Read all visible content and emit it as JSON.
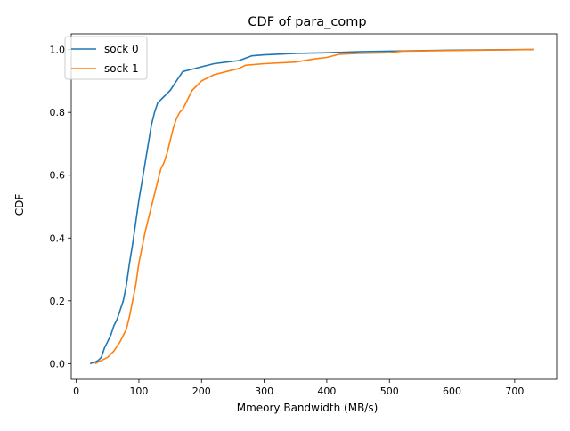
{
  "chart_data": {
    "type": "line",
    "title": "CDF of para_comp",
    "xlabel": "Mmeory Bandwidth (MB/s)",
    "ylabel": "CDF",
    "xlim": [
      -8,
      767
    ],
    "ylim": [
      -0.05,
      1.05
    ],
    "xticks": [
      0,
      100,
      200,
      300,
      400,
      500,
      600,
      700
    ],
    "yticks": [
      0.0,
      0.2,
      0.4,
      0.6,
      0.8,
      1.0
    ],
    "xtick_labels": [
      "0",
      "100",
      "200",
      "300",
      "400",
      "500",
      "600",
      "700"
    ],
    "ytick_labels": [
      "0.0",
      "0.2",
      "0.4",
      "0.6",
      "0.8",
      "1.0"
    ],
    "grid": false,
    "legend_position": "upper-left",
    "series": [
      {
        "name": "sock 0",
        "color": "#1f77b4",
        "points": [
          [
            22,
            0.0
          ],
          [
            30,
            0.005
          ],
          [
            35,
            0.01
          ],
          [
            40,
            0.02
          ],
          [
            45,
            0.05
          ],
          [
            50,
            0.07
          ],
          [
            55,
            0.09
          ],
          [
            60,
            0.12
          ],
          [
            65,
            0.14
          ],
          [
            70,
            0.17
          ],
          [
            75,
            0.2
          ],
          [
            80,
            0.25
          ],
          [
            85,
            0.32
          ],
          [
            90,
            0.38
          ],
          [
            95,
            0.45
          ],
          [
            100,
            0.52
          ],
          [
            105,
            0.58
          ],
          [
            110,
            0.64
          ],
          [
            115,
            0.7
          ],
          [
            120,
            0.76
          ],
          [
            125,
            0.8
          ],
          [
            130,
            0.83
          ],
          [
            140,
            0.85
          ],
          [
            150,
            0.87
          ],
          [
            160,
            0.9
          ],
          [
            170,
            0.93
          ],
          [
            180,
            0.935
          ],
          [
            200,
            0.945
          ],
          [
            220,
            0.955
          ],
          [
            240,
            0.96
          ],
          [
            260,
            0.965
          ],
          [
            280,
            0.98
          ],
          [
            300,
            0.983
          ],
          [
            350,
            0.988
          ],
          [
            400,
            0.99
          ],
          [
            450,
            0.993
          ],
          [
            500,
            0.995
          ],
          [
            600,
            0.998
          ],
          [
            731,
            1.0
          ]
        ]
      },
      {
        "name": "sock 1",
        "color": "#ff7f0e",
        "points": [
          [
            30,
            0.0
          ],
          [
            40,
            0.01
          ],
          [
            50,
            0.02
          ],
          [
            60,
            0.04
          ],
          [
            70,
            0.07
          ],
          [
            80,
            0.11
          ],
          [
            85,
            0.15
          ],
          [
            90,
            0.2
          ],
          [
            95,
            0.25
          ],
          [
            100,
            0.32
          ],
          [
            105,
            0.37
          ],
          [
            110,
            0.42
          ],
          [
            115,
            0.46
          ],
          [
            120,
            0.5
          ],
          [
            125,
            0.54
          ],
          [
            130,
            0.58
          ],
          [
            135,
            0.62
          ],
          [
            140,
            0.64
          ],
          [
            145,
            0.67
          ],
          [
            150,
            0.71
          ],
          [
            155,
            0.75
          ],
          [
            160,
            0.78
          ],
          [
            165,
            0.8
          ],
          [
            170,
            0.81
          ],
          [
            175,
            0.83
          ],
          [
            180,
            0.85
          ],
          [
            185,
            0.87
          ],
          [
            190,
            0.88
          ],
          [
            200,
            0.9
          ],
          [
            220,
            0.92
          ],
          [
            240,
            0.93
          ],
          [
            260,
            0.94
          ],
          [
            270,
            0.95
          ],
          [
            300,
            0.955
          ],
          [
            350,
            0.96
          ],
          [
            380,
            0.97
          ],
          [
            400,
            0.975
          ],
          [
            420,
            0.985
          ],
          [
            450,
            0.988
          ],
          [
            500,
            0.99
          ],
          [
            520,
            0.995
          ],
          [
            731,
            1.0
          ]
        ]
      }
    ]
  }
}
